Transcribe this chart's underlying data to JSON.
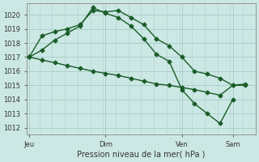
{
  "title": "Pression niveau de la mer( hPa )",
  "bg_color": "#cce8e4",
  "grid_color": "#aacfcb",
  "line_color": "#1a5c28",
  "ylim": [
    1011.5,
    1020.8
  ],
  "yticks": [
    1012,
    1013,
    1014,
    1015,
    1016,
    1017,
    1018,
    1019,
    1020
  ],
  "xtick_labels": [
    "Jeu",
    "Dim",
    "Ven",
    "Sam"
  ],
  "xtick_positions": [
    0,
    3,
    6,
    8
  ],
  "xlim": [
    -0.1,
    8.8
  ],
  "line1_x": [
    0,
    0.5,
    1.0,
    1.5,
    2.0,
    2.5,
    3.0,
    3.5,
    4.0,
    4.5,
    5.0,
    5.5,
    6.0,
    6.5,
    7.0,
    7.5,
    8.0,
    8.5
  ],
  "line1_y": [
    1017.0,
    1018.5,
    1018.8,
    1019.0,
    1019.3,
    1020.3,
    1020.2,
    1020.3,
    1019.8,
    1019.3,
    1018.3,
    1017.8,
    1017.0,
    1016.0,
    1015.8,
    1015.5,
    1015.0,
    1015.1
  ],
  "line2_x": [
    0,
    0.5,
    1.0,
    1.5,
    2.0,
    2.5,
    3.0,
    3.5,
    4.0,
    4.5,
    5.0,
    5.5,
    6.0,
    6.5,
    7.0,
    7.5,
    8.0
  ],
  "line2_y": [
    1017.0,
    1017.5,
    1018.2,
    1018.7,
    1019.2,
    1020.5,
    1020.1,
    1019.8,
    1019.2,
    1018.3,
    1017.2,
    1016.7,
    1014.7,
    1013.7,
    1013.0,
    1012.3,
    1014.0
  ],
  "line3_x": [
    0,
    0.5,
    1.0,
    1.5,
    2.0,
    2.5,
    3.0,
    3.5,
    4.0,
    4.5,
    5.0,
    5.5,
    6.0,
    6.5,
    7.0,
    7.5,
    8.0,
    8.5
  ],
  "line3_y": [
    1017.0,
    1016.8,
    1016.6,
    1016.4,
    1016.2,
    1016.0,
    1015.85,
    1015.7,
    1015.5,
    1015.3,
    1015.1,
    1015.0,
    1014.85,
    1014.7,
    1014.5,
    1014.3,
    1015.0,
    1015.0
  ],
  "marker": "D",
  "marker_size": 2.5,
  "linewidth": 1.0
}
